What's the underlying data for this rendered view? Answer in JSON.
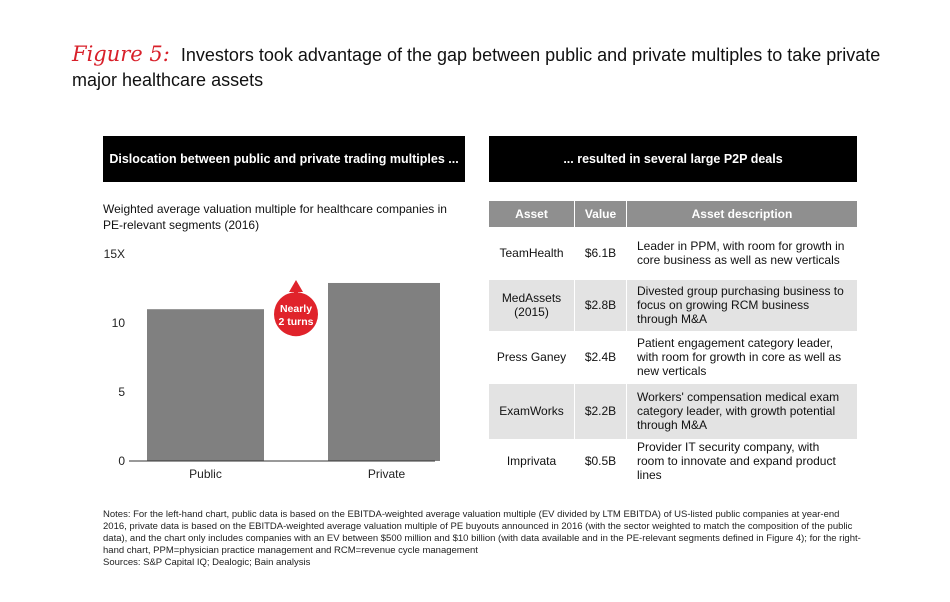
{
  "figure": {
    "label": "Figure 5:",
    "title": "Investors took advantage of the gap between public and private multiples to take private major healthcare assets"
  },
  "left_panel": {
    "header": "Dislocation between public and private trading multiples ...",
    "subtitle": "Weighted average valuation multiple for healthcare companies in PE-relevant segments (2016)",
    "annotation": [
      "Nearly",
      "2 turns"
    ]
  },
  "chart_data": {
    "type": "bar",
    "categories": [
      "Public",
      "Private"
    ],
    "values": [
      11,
      12.9
    ],
    "ylim": [
      0,
      15
    ],
    "yticks": [
      0,
      5,
      10,
      15
    ],
    "ytick_labels": [
      "0",
      "5",
      "10",
      "15X"
    ],
    "title": "",
    "xlabel": "",
    "ylabel": "",
    "grid": false,
    "bar_color": "#808080",
    "annotation_color": "#e0232b"
  },
  "right_panel": {
    "header": "... resulted in several large P2P deals",
    "columns": [
      "Asset",
      "Value",
      "Asset description"
    ],
    "rows": [
      {
        "asset": "TeamHealth",
        "value": "$6.1B",
        "description": "Leader in PPM, with room for growth in core business as well as new verticals"
      },
      {
        "asset": "MedAssets (2015)",
        "value": "$2.8B",
        "description": "Divested group purchasing business to focus on growing RCM business through M&A"
      },
      {
        "asset": "Press Ganey",
        "value": "$2.4B",
        "description": "Patient engagement category leader, with room for growth in core as well as new verticals"
      },
      {
        "asset": "ExamWorks",
        "value": "$2.2B",
        "description": "Workers' compensation medical exam category leader, with growth potential through M&A"
      },
      {
        "asset": "Imprivata",
        "value": "$0.5B",
        "description": "Provider IT security company, with room to innovate and expand product lines"
      }
    ]
  },
  "notes": {
    "text": "Notes: For the left-hand chart, public data is based on the EBITDA-weighted average valuation multiple (EV divided by LTM EBITDA) of US-listed public companies at year-end 2016, private data is based on the EBITDA-weighted average valuation multiple of PE buyouts announced in 2016 (with the sector weighted to match the composition of the public data), and the chart only includes companies with an EV between $500 million and $10 billion (with data available and in the PE-relevant segments defined in Figure 4); for the right-hand chart, PPM=physician practice management and RCM=revenue cycle management",
    "sources": "Sources: S&P Capital IQ; Dealogic; Bain analysis"
  }
}
